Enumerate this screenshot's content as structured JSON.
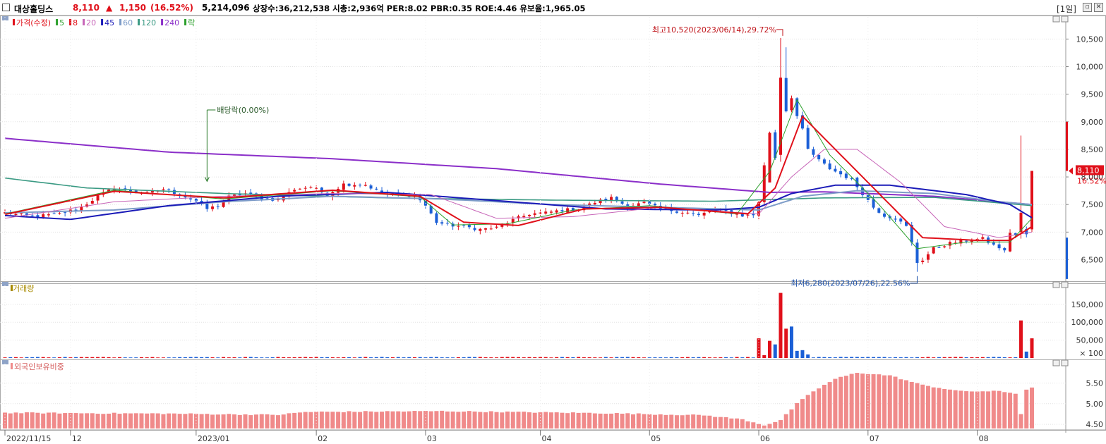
{
  "header": {
    "stock_name": "대상홀딩스",
    "price": "8,110",
    "change_arrow": "▲",
    "change": "1,150",
    "change_pct": "(16.52%)",
    "volume": "5,214,096",
    "stats": "상장수:36,212,538  시총:2,936억  PER:8.02  PBR:0.35  ROE:4.46  유보율:1,965.05",
    "timeframe": "[1일]"
  },
  "colors": {
    "up": "#e0101a",
    "down": "#1b5fd6",
    "ma5": "#2ca02c",
    "ma8": "#e0101a",
    "ma20": "#c765b8",
    "ma45": "#1b1bb8",
    "ma60": "#7d9cc8",
    "ma120": "#3a9a83",
    "ma240": "#8b2fc9",
    "foreign": "#f08a8a"
  },
  "panels": {
    "price_legend": [
      {
        "label": "가격(수정)",
        "color": "#e0101a"
      },
      {
        "label": "5",
        "color": "#2ca02c"
      },
      {
        "label": "8",
        "color": "#e0101a"
      },
      {
        "label": "20",
        "color": "#c765b8"
      },
      {
        "label": "45",
        "color": "#1b1bb8"
      },
      {
        "label": "60",
        "color": "#7d9cc8"
      },
      {
        "label": "120",
        "color": "#3a9a83"
      },
      {
        "label": "240",
        "color": "#8b2fc9"
      },
      {
        "label": "락",
        "color": "#2ca02c"
      }
    ],
    "volume_title": "거래량",
    "foreign_title": "외국인보유비중",
    "current_price_label": "8,110",
    "current_pct_label": "16.52%"
  },
  "annotations": {
    "high": "최고10,520(2023/06/14),29.72%",
    "low": "최저6,280(2023/07/26),22.56%",
    "dividend": "배당락(0.00%)"
  },
  "chart_data": [
    {
      "type": "candlestick",
      "x_labels": [
        "2022/11/15",
        "12",
        "2023/01",
        "02",
        "03",
        "04",
        "05",
        "06",
        "07",
        "08"
      ],
      "y_ticks": [
        6500,
        7000,
        7500,
        8000,
        8500,
        9000,
        9500,
        10000,
        10500
      ],
      "y_tick_labels": [
        "6,500",
        "7,000",
        "7,500",
        "8,000",
        "8,500",
        "9,000",
        "9,500",
        "10,000",
        "10,500"
      ],
      "ylim": [
        6110,
        10850
      ],
      "last_price": 8110,
      "high": {
        "value": 10520,
        "date": "2023/06/14"
      },
      "low": {
        "value": 6280,
        "date": "2023/07/26"
      },
      "close_path": [
        [
          0,
          7350
        ],
        [
          5,
          7280
        ],
        [
          10,
          7330
        ],
        [
          14,
          7450
        ],
        [
          17,
          7650
        ],
        [
          20,
          7800
        ],
        [
          23,
          7750
        ],
        [
          26,
          7700
        ],
        [
          29,
          7780
        ],
        [
          32,
          7680
        ],
        [
          35,
          7560
        ],
        [
          37,
          7420
        ],
        [
          39,
          7480
        ],
        [
          41,
          7640
        ],
        [
          44,
          7700
        ],
        [
          47,
          7620
        ],
        [
          50,
          7580
        ],
        [
          53,
          7780
        ],
        [
          56,
          7820
        ],
        [
          59,
          7680
        ],
        [
          62,
          7870
        ],
        [
          66,
          7860
        ],
        [
          69,
          7700
        ],
        [
          71,
          7680
        ],
        [
          73,
          7660
        ],
        [
          75,
          7680
        ],
        [
          77,
          7480
        ],
        [
          79,
          7180
        ],
        [
          81,
          7130
        ],
        [
          84,
          7100
        ],
        [
          87,
          7050
        ],
        [
          90,
          7080
        ],
        [
          93,
          7220
        ],
        [
          96,
          7330
        ],
        [
          99,
          7350
        ],
        [
          102,
          7400
        ],
        [
          105,
          7420
        ],
        [
          108,
          7540
        ],
        [
          111,
          7620
        ],
        [
          114,
          7470
        ],
        [
          117,
          7530
        ],
        [
          120,
          7420
        ],
        [
          123,
          7380
        ],
        [
          125,
          7350
        ],
        [
          127,
          7300
        ],
        [
          129,
          7380
        ],
        [
          131,
          7400
        ],
        [
          133,
          7350
        ],
        [
          135,
          7300
        ],
        [
          137,
          7310
        ],
        [
          138,
          7550
        ],
        [
          139,
          8200
        ],
        [
          140,
          8800
        ],
        [
          141,
          8350
        ],
        [
          142,
          9800
        ],
        [
          143,
          9200
        ],
        [
          144,
          9450
        ],
        [
          145,
          9100
        ],
        [
          146,
          8850
        ],
        [
          147,
          8500
        ],
        [
          149,
          8300
        ],
        [
          151,
          8150
        ],
        [
          153,
          8050
        ],
        [
          155,
          7950
        ],
        [
          157,
          7700
        ],
        [
          159,
          7450
        ],
        [
          161,
          7300
        ],
        [
          163,
          7250
        ],
        [
          165,
          7100
        ],
        [
          166,
          6800
        ],
        [
          167,
          6450
        ],
        [
          168,
          6500
        ],
        [
          170,
          6700
        ],
        [
          173,
          6800
        ],
        [
          176,
          6850
        ],
        [
          179,
          6880
        ],
        [
          181,
          6760
        ],
        [
          182,
          6720
        ],
        [
          183,
          6650
        ],
        [
          184,
          7000
        ],
        [
          185,
          6950
        ],
        [
          186,
          7060
        ],
        [
          187,
          6960
        ],
        [
          188,
          8110
        ]
      ],
      "moving_averages": {
        "ma5_path": [
          [
            0,
            7330
          ],
          [
            20,
            7760
          ],
          [
            40,
            7600
          ],
          [
            60,
            7750
          ],
          [
            76,
            7640
          ],
          [
            82,
            7130
          ],
          [
            92,
            7150
          ],
          [
            104,
            7400
          ],
          [
            118,
            7480
          ],
          [
            134,
            7330
          ],
          [
            140,
            8100
          ],
          [
            145,
            9400
          ],
          [
            151,
            8400
          ],
          [
            160,
            7500
          ],
          [
            167,
            6700
          ],
          [
            176,
            6820
          ],
          [
            184,
            6820
          ],
          [
            188,
            7250
          ]
        ],
        "ma8_path": [
          [
            0,
            7320
          ],
          [
            20,
            7740
          ],
          [
            40,
            7620
          ],
          [
            60,
            7760
          ],
          [
            76,
            7650
          ],
          [
            84,
            7180
          ],
          [
            94,
            7120
          ],
          [
            106,
            7420
          ],
          [
            120,
            7450
          ],
          [
            136,
            7330
          ],
          [
            141,
            7800
          ],
          [
            146,
            9100
          ],
          [
            153,
            8400
          ],
          [
            162,
            7500
          ],
          [
            168,
            6900
          ],
          [
            178,
            6850
          ],
          [
            184,
            6850
          ],
          [
            188,
            7100
          ]
        ],
        "ma20_path": [
          [
            0,
            7250
          ],
          [
            20,
            7550
          ],
          [
            40,
            7650
          ],
          [
            60,
            7700
          ],
          [
            78,
            7680
          ],
          [
            90,
            7250
          ],
          [
            104,
            7280
          ],
          [
            120,
            7450
          ],
          [
            138,
            7330
          ],
          [
            144,
            8000
          ],
          [
            150,
            8500
          ],
          [
            156,
            8500
          ],
          [
            164,
            7900
          ],
          [
            172,
            7100
          ],
          [
            182,
            6900
          ],
          [
            188,
            7000
          ]
        ],
        "ma45_path": [
          [
            0,
            7300
          ],
          [
            12,
            7230
          ],
          [
            30,
            7480
          ],
          [
            50,
            7650
          ],
          [
            70,
            7720
          ],
          [
            90,
            7570
          ],
          [
            110,
            7420
          ],
          [
            130,
            7400
          ],
          [
            138,
            7450
          ],
          [
            144,
            7700
          ],
          [
            152,
            7850
          ],
          [
            162,
            7850
          ],
          [
            176,
            7680
          ],
          [
            184,
            7500
          ],
          [
            188,
            7260
          ]
        ],
        "ma60_path": [
          [
            0,
            7350
          ],
          [
            20,
            7400
          ],
          [
            40,
            7550
          ],
          [
            60,
            7650
          ],
          [
            80,
            7600
          ],
          [
            100,
            7500
          ],
          [
            120,
            7450
          ],
          [
            138,
            7400
          ],
          [
            146,
            7650
          ],
          [
            156,
            7750
          ],
          [
            170,
            7700
          ],
          [
            182,
            7550
          ],
          [
            188,
            7500
          ]
        ],
        "ma120_path": [
          [
            0,
            7980
          ],
          [
            15,
            7800
          ],
          [
            40,
            7700
          ],
          [
            70,
            7620
          ],
          [
            100,
            7580
          ],
          [
            130,
            7560
          ],
          [
            150,
            7620
          ],
          [
            170,
            7630
          ],
          [
            188,
            7480
          ]
        ],
        "ma240_path": [
          [
            0,
            8700
          ],
          [
            30,
            8450
          ],
          [
            60,
            8330
          ],
          [
            90,
            8150
          ],
          [
            120,
            7870
          ],
          [
            140,
            7720
          ],
          [
            150,
            7730
          ],
          [
            170,
            7650
          ],
          [
            188,
            7500
          ]
        ]
      }
    },
    {
      "type": "bar",
      "name_ref": "거래량",
      "y_ticks": [
        50000,
        100000,
        150000
      ],
      "y_tick_labels": [
        "50,000",
        "100,000",
        "150,000"
      ],
      "unit_label": "× 100",
      "ylim": [
        0,
        195000
      ],
      "spikes": [
        {
          "i": 138,
          "value": 55000,
          "up": true
        },
        {
          "i": 139,
          "value": 8000,
          "up": true
        },
        {
          "i": 140,
          "value": 48000,
          "up": true
        },
        {
          "i": 141,
          "value": 38000,
          "up": false
        },
        {
          "i": 142,
          "value": 182000,
          "up": true
        },
        {
          "i": 143,
          "value": 82000,
          "up": true
        },
        {
          "i": 144,
          "value": 88000,
          "up": false
        },
        {
          "i": 145,
          "value": 20000,
          "up": false
        },
        {
          "i": 146,
          "value": 22000,
          "up": false
        },
        {
          "i": 147,
          "value": 10000,
          "up": false
        },
        {
          "i": 186,
          "value": 105000,
          "up": true
        },
        {
          "i": 187,
          "value": 18000,
          "up": false
        },
        {
          "i": 188,
          "value": 55000,
          "up": true
        }
      ]
    },
    {
      "type": "bar",
      "name_ref": "외국인보유비중",
      "y_ticks": [
        4.5,
        5.0,
        5.5
      ],
      "y_tick_labels": [
        "4.50",
        "5.00",
        "5.50"
      ],
      "ylim": [
        4.4,
        5.9
      ],
      "path": [
        [
          0,
          4.78
        ],
        [
          30,
          4.76
        ],
        [
          50,
          4.73
        ],
        [
          55,
          4.8
        ],
        [
          80,
          4.82
        ],
        [
          110,
          4.77
        ],
        [
          128,
          4.72
        ],
        [
          135,
          4.62
        ],
        [
          139,
          4.48
        ],
        [
          142,
          4.6
        ],
        [
          145,
          5.0
        ],
        [
          148,
          5.3
        ],
        [
          152,
          5.6
        ],
        [
          156,
          5.75
        ],
        [
          162,
          5.68
        ],
        [
          168,
          5.45
        ],
        [
          175,
          5.3
        ],
        [
          182,
          5.3
        ],
        [
          185,
          5.25
        ],
        [
          186,
          4.75
        ],
        [
          187,
          5.35
        ],
        [
          188,
          5.38
        ]
      ]
    }
  ]
}
